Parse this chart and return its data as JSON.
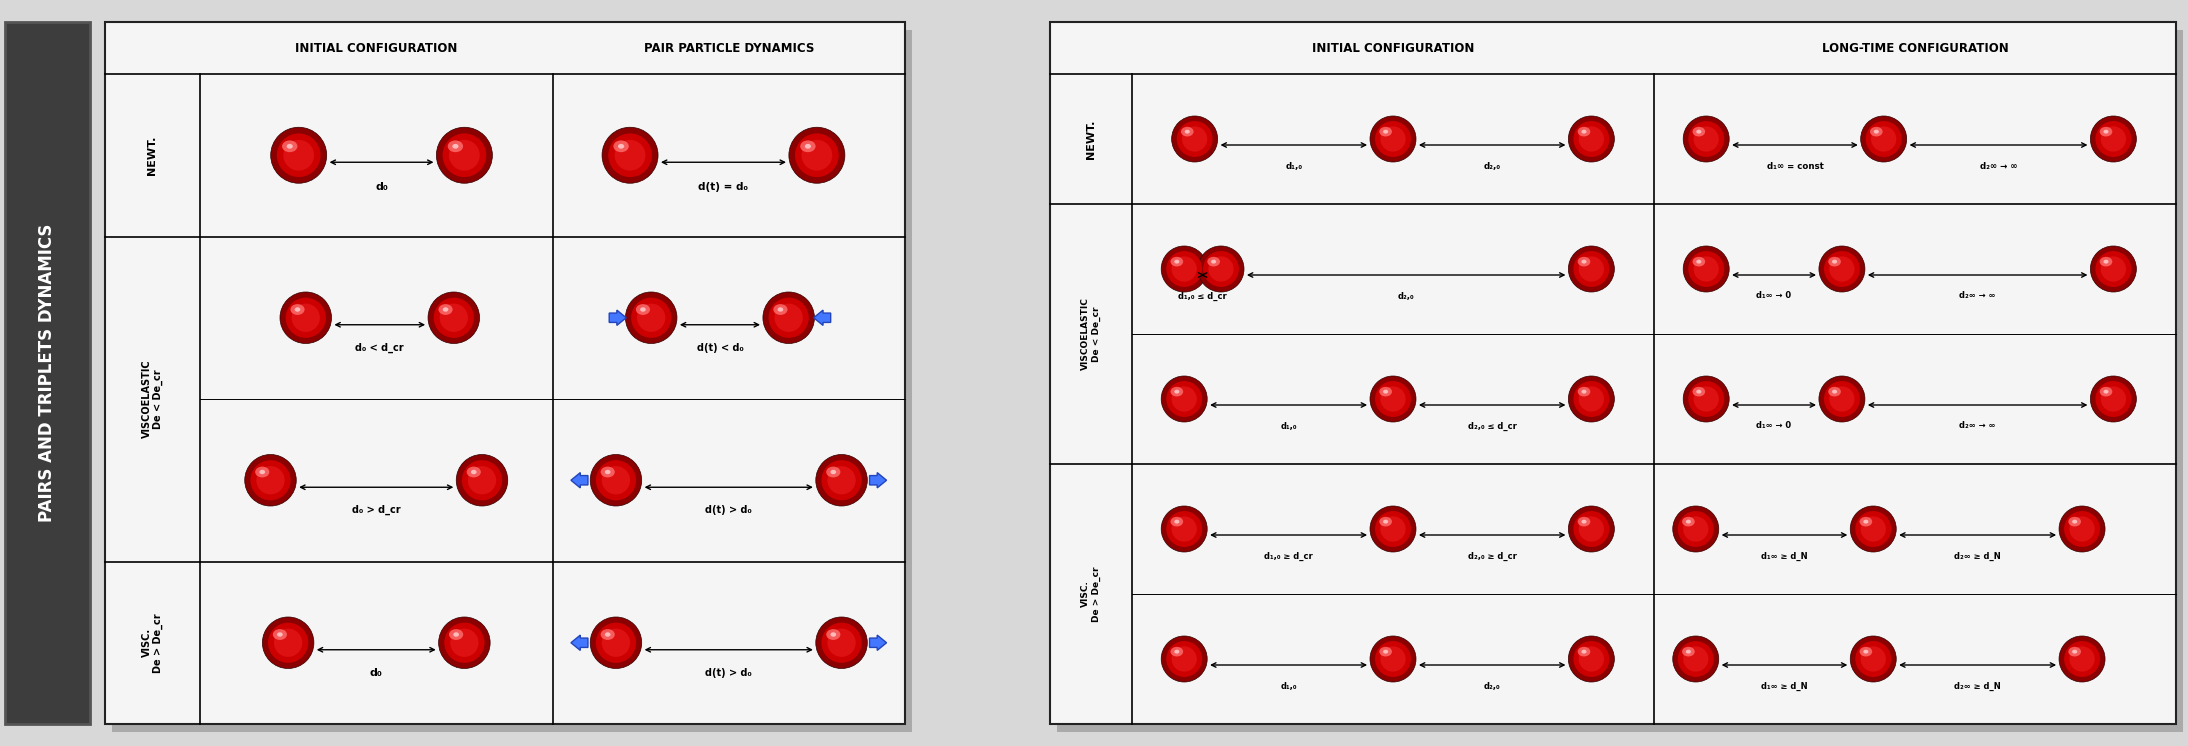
{
  "bg_color": "#d8d8d8",
  "sidebar_color": "#404040",
  "sidebar_text": "PAIRS AND TRIPLETS DYNAMICS",
  "panel_bg": "#ffffff",
  "lp_header1": "INITIAL CONFIGURATION",
  "lp_header2": "PAIR PARTICLE DYNAMICS",
  "rp_header1": "INITIAL CONFIGURATION",
  "rp_header2": "LONG-TIME CONFIGURATION",
  "figw": 21.88,
  "figh": 7.46,
  "dpi": 100
}
